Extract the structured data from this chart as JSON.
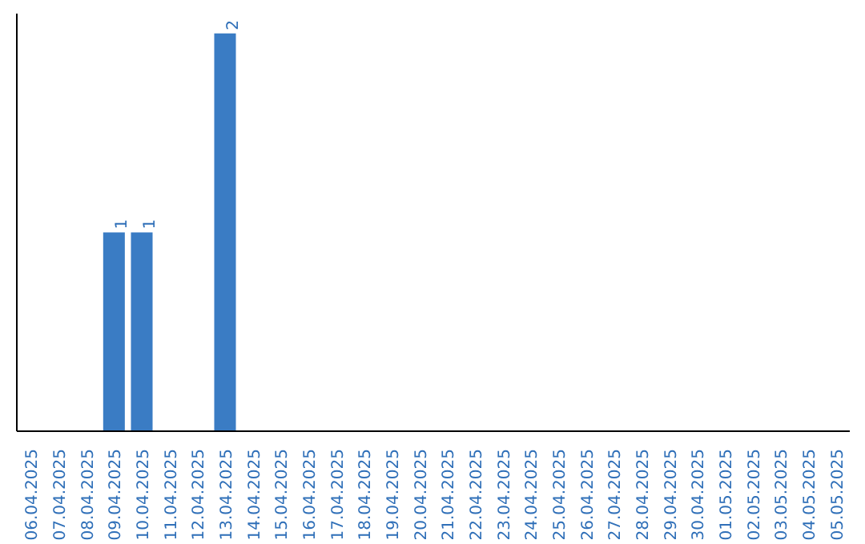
{
  "chart_data": {
    "type": "bar",
    "categories": [
      "06.04.2025",
      "07.04.2025",
      "08.04.2025",
      "09.04.2025",
      "10.04.2025",
      "11.04.2025",
      "12.04.2025",
      "13.04.2025",
      "14.04.2025",
      "15.04.2025",
      "16.04.2025",
      "17.04.2025",
      "18.04.2025",
      "19.04.2025",
      "20.04.2025",
      "21.04.2025",
      "22.04.2025",
      "23.04.2025",
      "24.04.2025",
      "25.04.2025",
      "26.04.2025",
      "27.04.2025",
      "28.04.2025",
      "29.04.2025",
      "30.04.2025",
      "01.05.2025",
      "02.05.2025",
      "03.05.2025",
      "04.05.2025",
      "05.05.2025"
    ],
    "values": [
      0,
      0,
      0,
      1,
      1,
      0,
      0,
      2,
      0,
      0,
      0,
      0,
      0,
      0,
      0,
      0,
      0,
      0,
      0,
      0,
      0,
      0,
      0,
      0,
      0,
      0,
      0,
      0,
      0,
      0
    ],
    "value_labels": [
      null,
      null,
      null,
      "1",
      "1",
      null,
      null,
      "2",
      null,
      null,
      null,
      null,
      null,
      null,
      null,
      null,
      null,
      null,
      null,
      null,
      null,
      null,
      null,
      null,
      null,
      null,
      null,
      null,
      null,
      null
    ],
    "color": "#3a7cc4",
    "grid": false
  }
}
